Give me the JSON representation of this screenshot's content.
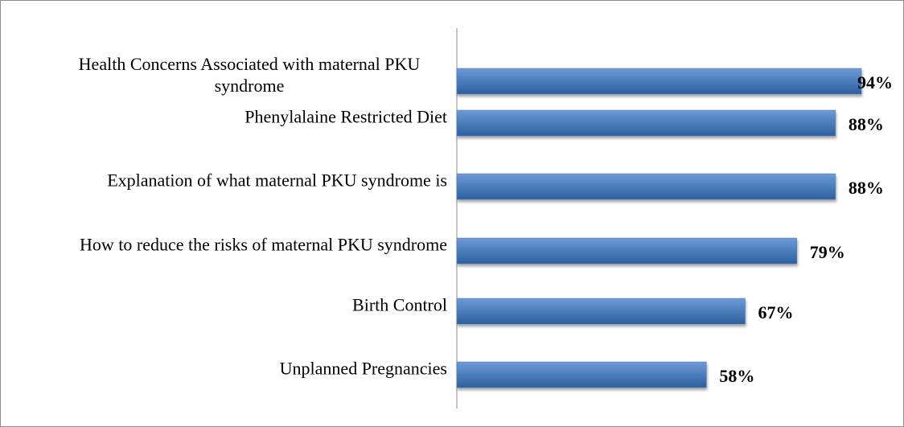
{
  "chart_data": {
    "type": "bar",
    "orientation": "horizontal",
    "categories": [
      "Health Concerns Associated with maternal PKU syndrome",
      "Phenylalaine Restricted Diet",
      "Explanation of what maternal PKU syndrome is",
      "How to reduce the risks of maternal PKU syndrome",
      "Birth Control",
      "Unplanned Pregnancies"
    ],
    "values": [
      94,
      88,
      88,
      79,
      67,
      58
    ],
    "value_labels": [
      "94%",
      "88%",
      "88%",
      "79%",
      "67%",
      "58%"
    ],
    "color": "#4a7ebb"
  }
}
